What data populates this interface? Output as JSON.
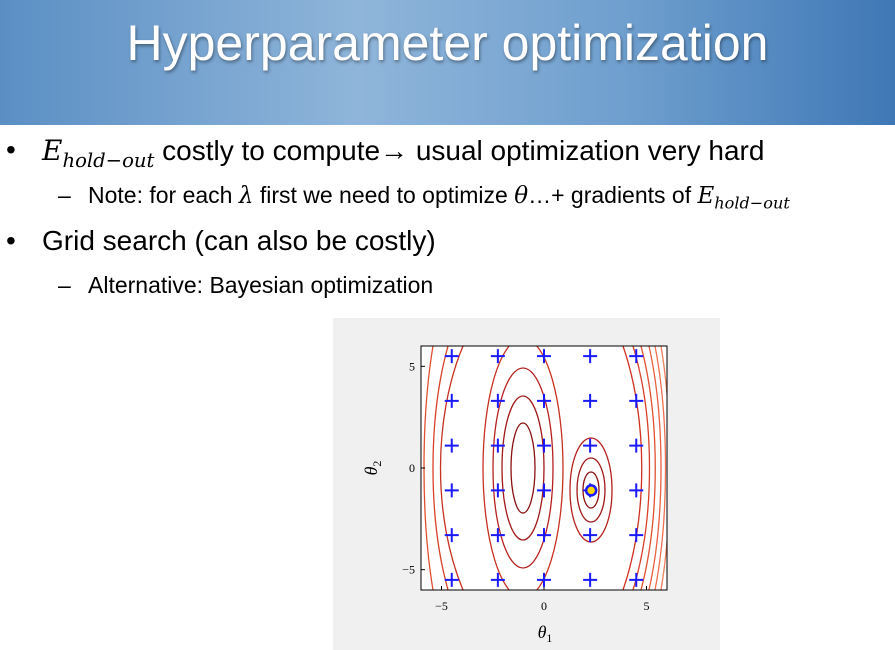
{
  "header": {
    "title": "Hyperparameter optimization"
  },
  "bullets": [
    {
      "parts": [
        "E",
        "hold−out",
        " costly to compute→ usual optimization very hard"
      ],
      "sub": [
        "Note: for each ",
        "λ",
        " first we need to optimize ",
        "θ",
        "…+ gradients of ",
        "E",
        "hold−out"
      ]
    },
    {
      "parts": [
        "Grid search (can also be costly)"
      ],
      "sub": [
        "Alternative: Bayesian optimization"
      ]
    }
  ],
  "figure": {
    "x_label": [
      "θ",
      "1"
    ],
    "y_label": [
      "θ",
      "2"
    ],
    "xlim": [
      -6,
      6
    ],
    "ylim": [
      -6,
      6
    ],
    "xticks": [
      {
        "value": -5,
        "label": "−5"
      },
      0,
      5
    ],
    "yticks": [
      {
        "value": -5,
        "label": "−5"
      },
      0,
      5
    ],
    "grid_x": [
      -4.5,
      -2.25,
      0,
      2.25,
      4.5
    ],
    "grid_y": [
      -5.5,
      -3.3,
      -1.1,
      1.1,
      3.3,
      5.5
    ],
    "best": {
      "x": 2.3,
      "y": -1.1
    }
  }
}
